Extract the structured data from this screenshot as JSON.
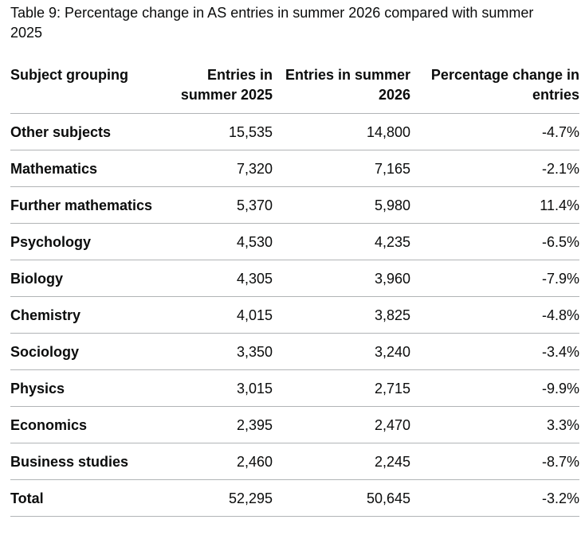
{
  "caption": "Table 9: Percentage change in AS entries in summer 2026 compared with summer 2025",
  "table": {
    "headers": [
      "Subject grouping",
      "Entries in summer 2025",
      "Entries in summer 2026",
      "Percentage change in entries"
    ],
    "rows": [
      [
        "Other subjects",
        "15,535",
        "14,800",
        "-4.7%"
      ],
      [
        "Mathematics",
        "7,320",
        "7,165",
        "-2.1%"
      ],
      [
        "Further mathematics",
        "5,370",
        "5,980",
        "11.4%"
      ],
      [
        "Psychology",
        "4,530",
        "4,235",
        "-6.5%"
      ],
      [
        "Biology",
        "4,305",
        "3,960",
        "-7.9%"
      ],
      [
        "Chemistry",
        "4,015",
        "3,825",
        "-4.8%"
      ],
      [
        "Sociology",
        "3,350",
        "3,240",
        "-3.4%"
      ],
      [
        "Physics",
        "3,015",
        "2,715",
        "-9.9%"
      ],
      [
        "Economics",
        "2,395",
        "2,470",
        "3.3%"
      ],
      [
        "Business studies",
        "2,460",
        "2,245",
        "-8.7%"
      ],
      [
        "Total",
        "52,295",
        "50,645",
        "-3.2%"
      ]
    ]
  }
}
